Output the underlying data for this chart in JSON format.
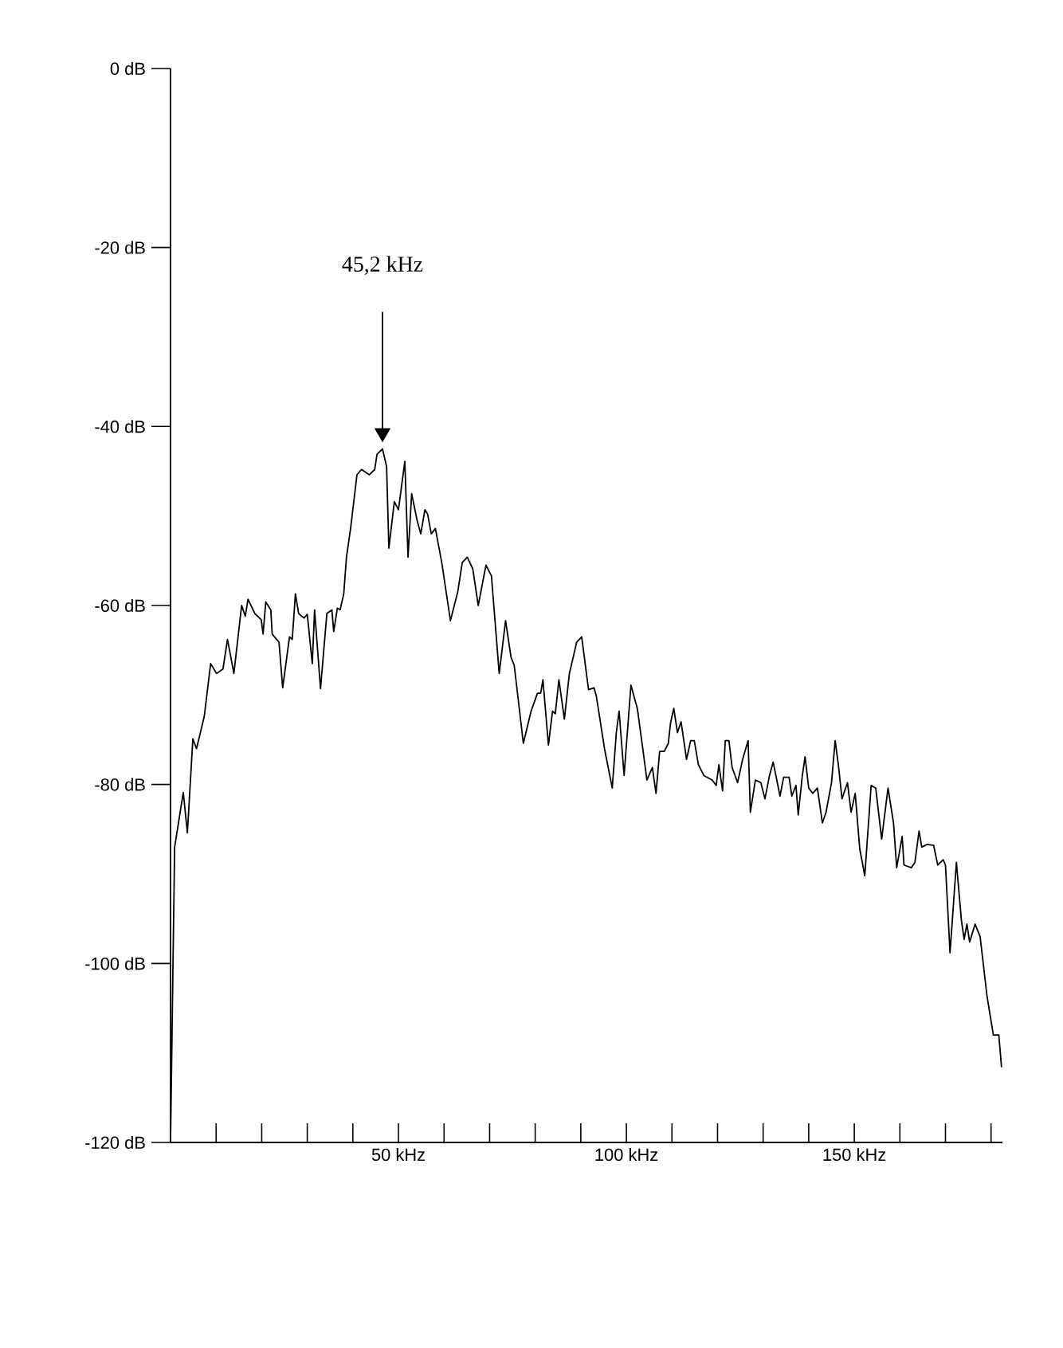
{
  "chart_data": {
    "type": "line",
    "color": "#000000",
    "x": [
      0,
      0.9,
      2.8,
      3.7,
      4.9,
      5.7,
      7.4,
      8.8,
      10.1,
      11.5,
      12.5,
      13.9,
      15.6,
      16.4,
      17,
      18.5,
      19.9,
      20.3,
      20.9,
      22,
      22.3,
      23.8,
      24.6,
      26.1,
      26.7,
      27.4,
      28.1,
      29.3,
      30,
      31.1,
      31.6,
      32.9,
      34.3,
      35.4,
      35.8,
      36.6,
      37.2,
      38,
      38.6,
      39.5,
      40.9,
      41.9,
      43.6,
      44.8,
      45.3,
      46.5,
      47.4,
      47.9,
      49.1,
      50,
      51.4,
      52.1,
      52.9,
      54.1,
      54.9,
      55.8,
      56.4,
      57.2,
      58.1,
      59.5,
      61.4,
      63,
      64,
      65.1,
      66.3,
      67.5,
      69.2,
      70.4,
      72.1,
      73.5,
      74.7,
      75.4,
      77.4,
      79.1,
      80.5,
      81.2,
      81.7,
      82.9,
      83.8,
      84.4,
      85.2,
      86.4,
      87.5,
      89.1,
      90.2,
      91.7,
      92.9,
      93.4,
      95.2,
      96.9,
      97.8,
      98.4,
      99.5,
      101,
      102.4,
      103.6,
      104.5,
      105.7,
      106.5,
      107.3,
      108.3,
      109.2,
      109.7,
      110.4,
      111.2,
      112,
      113.2,
      114.1,
      114.9,
      115.8,
      117,
      118.8,
      119.7,
      120.3,
      121.1,
      121.7,
      122.5,
      123.2,
      124.4,
      125.5,
      126.7,
      127.2,
      128.3,
      129.5,
      130.4,
      131.4,
      132.2,
      132.8,
      133.7,
      134.5,
      135.7,
      136.3,
      137.2,
      137.7,
      138.6,
      139.2,
      140,
      140.9,
      141.9,
      143,
      143.8,
      145,
      145.8,
      146.5,
      147.3,
      148.5,
      149.3,
      150.2,
      151.2,
      152.3,
      153.7,
      154.7,
      156,
      157.4,
      158.6,
      159.3,
      160.5,
      160.9,
      162.5,
      163.3,
      164.2,
      164.8,
      166,
      167.4,
      168.3,
      169.5,
      170,
      171,
      172.4,
      173.5,
      174.1,
      174.7,
      175.3,
      176.5,
      177.6,
      179.1,
      180.5,
      181.7,
      182.3
    ],
    "values": [
      -120,
      -87,
      -80.9,
      -85.4,
      -74.9,
      -76,
      -72.4,
      -66.5,
      -67.6,
      -67.1,
      -63.8,
      -67.6,
      -60,
      -61.2,
      -59.3,
      -60.9,
      -61.6,
      -63.2,
      -59.6,
      -60.5,
      -63.2,
      -64.1,
      -69.2,
      -63.5,
      -63.8,
      -58.7,
      -60.9,
      -61.4,
      -61,
      -66.5,
      -60.5,
      -69.3,
      -60.9,
      -60.5,
      -62.9,
      -60.3,
      -60.5,
      -58.7,
      -54.6,
      -51.4,
      -45.4,
      -44.8,
      -45.4,
      -44.8,
      -43.1,
      -42.5,
      -44.5,
      -53.6,
      -48.4,
      -49.3,
      -43.9,
      -54.6,
      -47.5,
      -50.5,
      -52,
      -49.3,
      -49.8,
      -52,
      -51.4,
      -55.2,
      -61.7,
      -58.5,
      -55.2,
      -54.6,
      -55.9,
      -60,
      -55.5,
      -56.7,
      -67.6,
      -61.7,
      -65.8,
      -66.7,
      -75.4,
      -71.8,
      -69.8,
      -69.8,
      -68.3,
      -75.6,
      -71.8,
      -72.1,
      -68.3,
      -72.7,
      -67.6,
      -64.1,
      -63.5,
      -69.4,
      -69.2,
      -70.1,
      -76,
      -80.4,
      -74.2,
      -71.8,
      -79,
      -68.9,
      -71.5,
      -76,
      -79.5,
      -78.1,
      -81,
      -76.3,
      -76.3,
      -75.4,
      -73.1,
      -71.5,
      -74.2,
      -73,
      -77.2,
      -75.1,
      -75.1,
      -77.8,
      -79,
      -79.5,
      -80.1,
      -77.8,
      -80.7,
      -75.1,
      -75.1,
      -78.1,
      -79.8,
      -77.2,
      -75.1,
      -83.1,
      -79.5,
      -79.8,
      -81.6,
      -79,
      -77.5,
      -79,
      -81.3,
      -79.2,
      -79.2,
      -81.3,
      -80.1,
      -83.4,
      -79,
      -76.9,
      -80.4,
      -81,
      -80.4,
      -84.3,
      -83.1,
      -79.8,
      -75.1,
      -77.8,
      -81.6,
      -79.8,
      -83.1,
      -81,
      -87.2,
      -90.2,
      -80.1,
      -80.4,
      -86.1,
      -80.4,
      -84.3,
      -89.3,
      -85.8,
      -89,
      -89.3,
      -88.7,
      -85.2,
      -87,
      -86.7,
      -86.8,
      -89,
      -88.4,
      -89,
      -98.8,
      -88.7,
      -95.2,
      -97.3,
      -95.6,
      -97.6,
      -95.6,
      -97,
      -103.6,
      -108,
      -108,
      -111.6
    ],
    "xlim": [
      0,
      182.5
    ],
    "xticks": [
      {
        "value": 0,
        "label": null
      },
      {
        "value": 10,
        "label": null
      },
      {
        "value": 20,
        "label": null
      },
      {
        "value": 30,
        "label": null
      },
      {
        "value": 40,
        "label": null
      },
      {
        "value": 50,
        "label": "50 kHz"
      },
      {
        "value": 60,
        "label": null
      },
      {
        "value": 70,
        "label": null
      },
      {
        "value": 80,
        "label": null
      },
      {
        "value": 90,
        "label": null
      },
      {
        "value": 100,
        "label": "100 kHz"
      },
      {
        "value": 110,
        "label": null
      },
      {
        "value": 120,
        "label": null
      },
      {
        "value": 130,
        "label": null
      },
      {
        "value": 140,
        "label": null
      },
      {
        "value": 150,
        "label": "150 kHz"
      },
      {
        "value": 160,
        "label": null
      },
      {
        "value": 170,
        "label": null
      },
      {
        "value": 180,
        "label": null
      }
    ],
    "ylim": [
      -120,
      0
    ],
    "yticks": [
      {
        "value": -120,
        "label": "-120 dB"
      },
      {
        "value": -100,
        "label": "-100 dB"
      },
      {
        "value": -80,
        "label": "-80 dB"
      },
      {
        "value": -60,
        "label": "-60 dB"
      },
      {
        "value": -40,
        "label": "-40 dB"
      },
      {
        "value": -20,
        "label": "-20 dB"
      },
      {
        "value": 0,
        "label": "0 dB"
      }
    ],
    "annotations": [
      "45,2 kHz"
    ]
  }
}
